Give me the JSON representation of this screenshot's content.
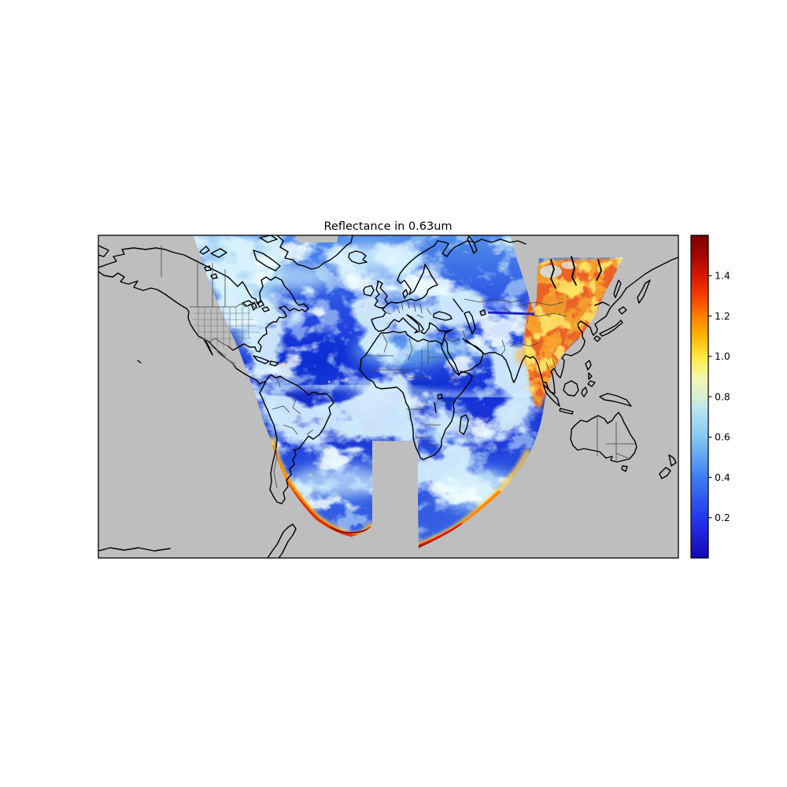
{
  "figure": {
    "title": "Reflectance in 0.63um",
    "background_color": "#ffffff"
  },
  "map": {
    "background_color": "#bebebe",
    "coastline_color": "#000000",
    "country_border_color": "#444444",
    "state_border_color": "#6f6f6f",
    "frame_color": "#000000"
  },
  "chart_data": {
    "type": "heatmap",
    "title": "Reflectance in 0.63um",
    "variable": "satellite reflectance at 0.63 um on a world map (equirectangular), data limited to a curved satellite swath; areas outside the swath are gray",
    "colorbar": {
      "ticks": [
        "0.2",
        "0.4",
        "0.6",
        "0.8",
        "1.0",
        "1.2",
        "1.4"
      ],
      "tick_values": [
        0.2,
        0.4,
        0.6,
        0.8,
        1.0,
        1.2,
        1.4
      ],
      "vmin": 0.0,
      "vmax": 1.6,
      "colormap_stops": [
        [
          0.0,
          "#1607b8"
        ],
        [
          0.125,
          "#2337ee"
        ],
        [
          0.25,
          "#3f7df2"
        ],
        [
          0.375,
          "#86c8f2"
        ],
        [
          0.47,
          "#c0e8ef"
        ],
        [
          0.5,
          "#d8f0d0"
        ],
        [
          0.56,
          "#f4f7ae"
        ],
        [
          0.625,
          "#ffe93e"
        ],
        [
          0.69,
          "#ffb300"
        ],
        [
          0.75,
          "#ff7d00"
        ],
        [
          0.8125,
          "#f63c00"
        ],
        [
          0.875,
          "#d81800"
        ],
        [
          0.94,
          "#a30600"
        ],
        [
          1.0,
          "#7a0000"
        ]
      ]
    },
    "regions": [
      {
        "area": "open ocean (Atlantic, Indian)",
        "approx_reflectance": "0.05-0.30"
      },
      {
        "area": "cloud fields and storm systems",
        "approx_reflectance": "0.45-0.90"
      },
      {
        "area": "Sahara and Arabian deserts",
        "approx_reflectance": "0.35-0.60"
      },
      {
        "area": "northeast Asia along eastern swath edge (snow/high values)",
        "approx_reflectance": "1.0-1.6"
      },
      {
        "area": "southern swath edge rims (two lobes)",
        "approx_reflectance": "1.0-1.6"
      },
      {
        "area": "missing-data rectangle, south-central swath",
        "approx_reflectance": "no data (gray)"
      },
      {
        "area": "outside swath (Americas west, East Asia east, Australia, poles)",
        "approx_reflectance": "no data (gray)"
      }
    ]
  }
}
